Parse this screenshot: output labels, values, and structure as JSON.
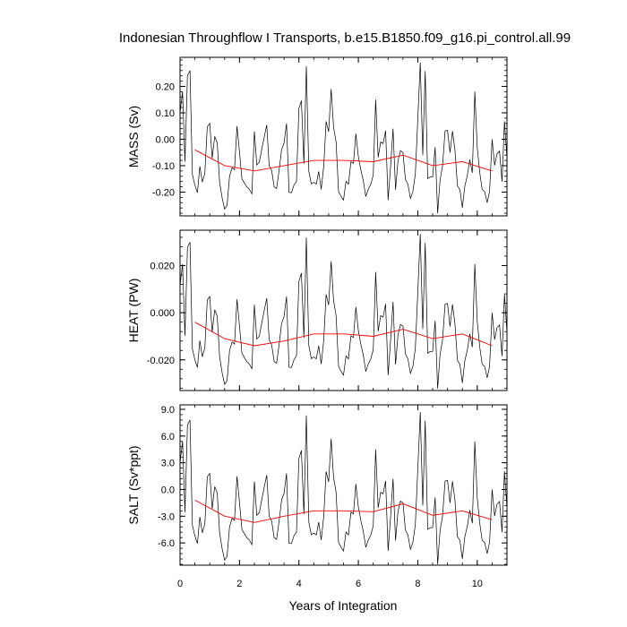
{
  "chart_data": {
    "type": "line",
    "title": "Indonesian Throughflow I Transports, b.e15.B1850.f09_g16.pi_control.all.99",
    "xlabel": "Years of Integration",
    "xlim": [
      0,
      11
    ],
    "xticks": [
      "0",
      "2",
      "4",
      "6",
      "8",
      "10"
    ],
    "x_tick_values": [
      0,
      2,
      4,
      6,
      8,
      10
    ],
    "time_step_years": 0.083333,
    "mean_x": [
      0.5,
      1.5,
      2.5,
      3.5,
      4.5,
      5.5,
      6.5,
      7.5,
      8.5,
      9.5,
      10.5
    ],
    "monthly_shape": [
      0.1,
      0.16,
      -0.08,
      0.26,
      -0.13,
      -0.15,
      -0.16,
      -0.19,
      -0.12,
      -0.17,
      -0.11,
      0.05,
      0.04,
      -0.07,
      0.03,
      -0.02,
      -0.18,
      -0.21,
      -0.25,
      -0.16,
      -0.15,
      -0.09,
      -0.11,
      0.03,
      -0.05,
      -0.13,
      -0.17,
      -0.2,
      -0.18,
      -0.19,
      -0.14,
      -0.11,
      -0.07,
      -0.03,
      -0.01,
      0.05,
      -0.08,
      -0.12,
      -0.2,
      -0.18,
      -0.1,
      -0.05,
      -0.03,
      -0.15,
      -0.19,
      -0.22,
      -0.18,
      -0.14
    ],
    "colors": {
      "monthly": "#000000",
      "mean": "#ff0000"
    },
    "panels": [
      {
        "ylabel": "MASS (Sv)",
        "ylim": [
          -0.29,
          0.31
        ],
        "yticks": [
          "-0.20",
          "-0.10",
          "0.00",
          "0.10",
          "0.20"
        ],
        "ytick_values": [
          -0.2,
          -0.1,
          0.0,
          0.1,
          0.2
        ],
        "monthly_scale": 1.0,
        "monthly_offset": 0.0,
        "mean_values": [
          -0.04,
          -0.1,
          -0.12,
          -0.1,
          -0.08,
          -0.08,
          -0.085,
          -0.06,
          -0.1,
          -0.085,
          -0.12
        ]
      },
      {
        "ylabel": "HEAT (PW)",
        "ylim": [
          -0.033,
          0.035
        ],
        "yticks": [
          "-0.020",
          "0.000",
          "0.020"
        ],
        "ytick_values": [
          -0.02,
          0.0,
          0.02
        ],
        "monthly_scale": 0.115,
        "monthly_offset": 0.0,
        "mean_values": [
          -0.004,
          -0.011,
          -0.014,
          -0.012,
          -0.009,
          -0.009,
          -0.01,
          -0.007,
          -0.011,
          -0.009,
          -0.014
        ]
      },
      {
        "ylabel": "SALT (Sv*ppt)",
        "ylim": [
          -8.5,
          9.5
        ],
        "yticks": [
          "-6.0",
          "-3.0",
          "0.0",
          "3.0",
          "6.0",
          "9.0"
        ],
        "ytick_values": [
          -6.0,
          -3.0,
          0.0,
          3.0,
          6.0,
          9.0
        ],
        "monthly_scale": 30.0,
        "monthly_offset": 0.0,
        "mean_values": [
          -1.2,
          -3.0,
          -3.7,
          -3.0,
          -2.4,
          -2.4,
          -2.5,
          -1.6,
          -2.9,
          -2.4,
          -3.4
        ]
      }
    ]
  }
}
